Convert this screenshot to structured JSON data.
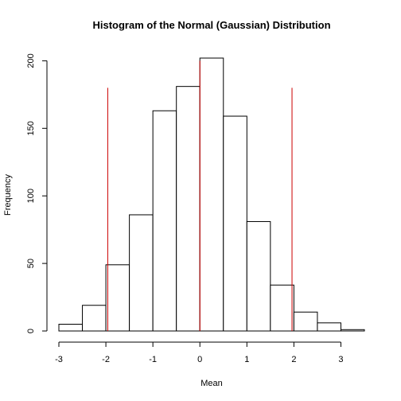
{
  "chart_data": {
    "type": "bar",
    "title": "Histogram of the Normal (Gaussian) Distribution",
    "xlabel": "Mean",
    "ylabel": "Frequency",
    "bins": [
      {
        "x0": -3.0,
        "x1": -2.5,
        "count": 5
      },
      {
        "x0": -2.5,
        "x1": -2.0,
        "count": 19
      },
      {
        "x0": -2.0,
        "x1": -1.5,
        "count": 49
      },
      {
        "x0": -1.5,
        "x1": -1.0,
        "count": 86
      },
      {
        "x0": -1.0,
        "x1": -0.5,
        "count": 163
      },
      {
        "x0": -0.5,
        "x1": 0.0,
        "count": 181
      },
      {
        "x0": 0.0,
        "x1": 0.5,
        "count": 202
      },
      {
        "x0": 0.5,
        "x1": 1.0,
        "count": 159
      },
      {
        "x0": 1.0,
        "x1": 1.5,
        "count": 81
      },
      {
        "x0": 1.5,
        "x1": 2.0,
        "count": 34
      },
      {
        "x0": 2.0,
        "x1": 2.5,
        "count": 14
      },
      {
        "x0": 2.5,
        "x1": 3.0,
        "count": 6
      },
      {
        "x0": 3.0,
        "x1": 3.5,
        "count": 1
      }
    ],
    "reference_lines": [
      {
        "x": -1.96,
        "y0": 0,
        "y1": 180,
        "color": "#cc0000"
      },
      {
        "x": 0,
        "y0": 0,
        "y1": 200,
        "color": "#cc0000"
      },
      {
        "x": 1.96,
        "y0": 0,
        "y1": 180,
        "color": "#cc0000"
      }
    ],
    "xlim": [
      -3,
      3.5
    ],
    "ylim": [
      0,
      210
    ],
    "xticks": [
      -3,
      -2,
      -1,
      0,
      1,
      2,
      3
    ],
    "yticks": [
      0,
      50,
      100,
      150,
      200
    ],
    "grid": false
  }
}
